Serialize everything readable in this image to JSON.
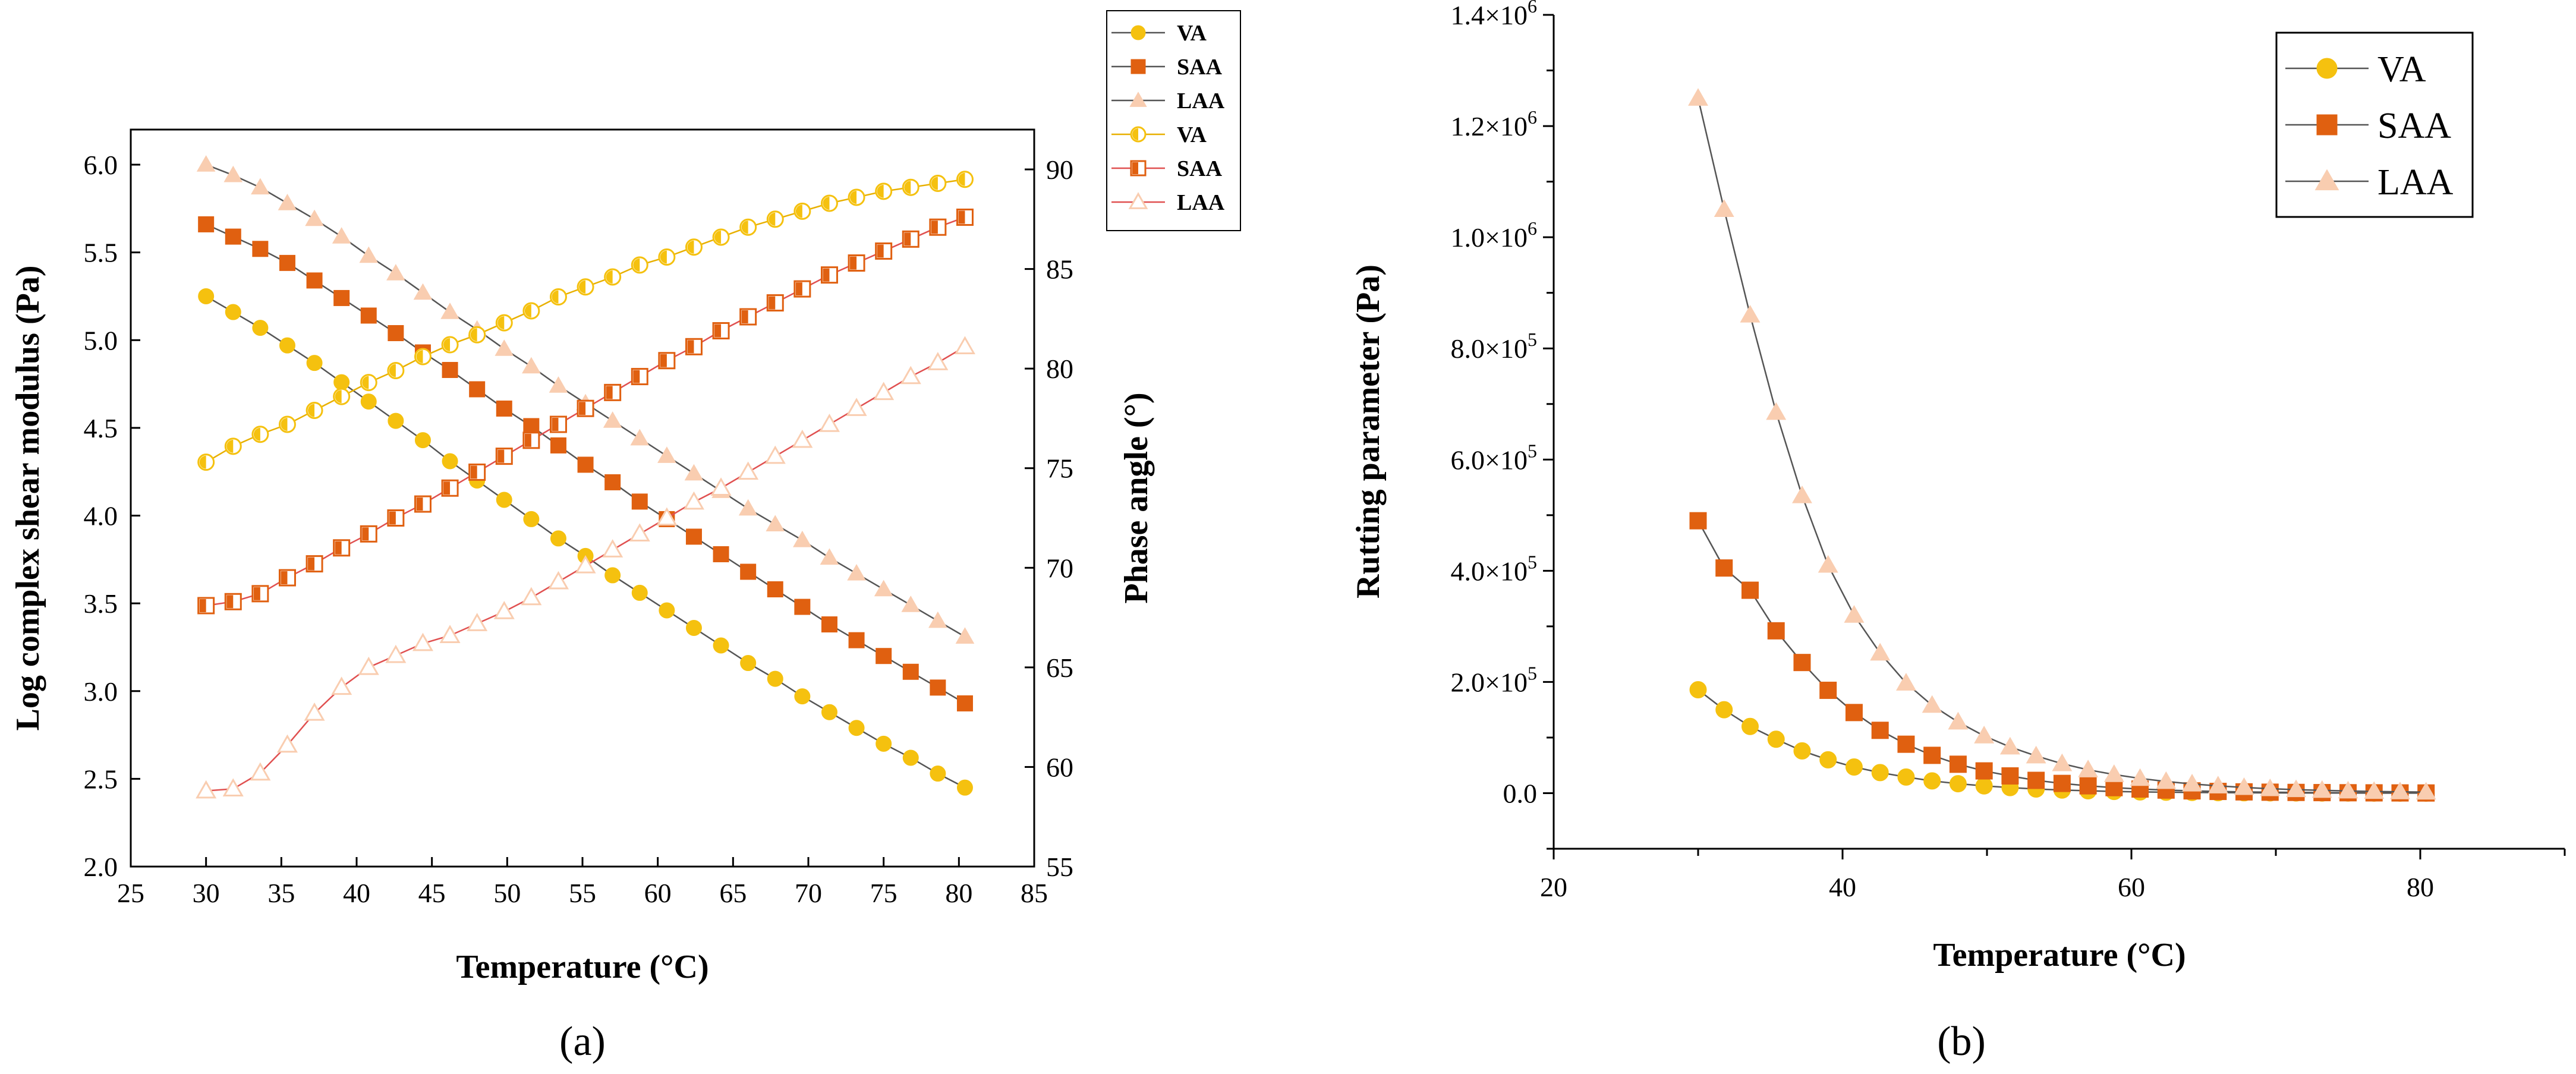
{
  "colors": {
    "va": "#F5C10F",
    "saa": "#E06010",
    "laa": "#F9CDB0",
    "line_dark": "#555555",
    "line_va_open": "#E8B000",
    "line_red": "#E05050"
  },
  "panels": {
    "a": "(a)",
    "b": "(b)"
  },
  "chart_data": [
    {
      "type": "line",
      "panel": "a",
      "title": "",
      "xlabel": "Temperature (°C)",
      "ylabel": "Log complex shear modulus (Pa)",
      "y2label": "Phase angle (°)",
      "xlim": [
        25,
        85
      ],
      "ylim": [
        2.0,
        6.2
      ],
      "y2lim": [
        55,
        92
      ],
      "xticks": [
        "25",
        "30",
        "35",
        "40",
        "45",
        "50",
        "55",
        "60",
        "65",
        "70",
        "75",
        "80",
        "85"
      ],
      "yticks": [
        "2.0",
        "2.5",
        "3.0",
        "3.5",
        "4.0",
        "4.5",
        "5.0",
        "5.5",
        "6.0"
      ],
      "y2ticks": [
        "55",
        "60",
        "65",
        "70",
        "75",
        "80",
        "85",
        "90"
      ],
      "x": [
        30,
        31.8,
        33.6,
        35.4,
        37.2,
        39,
        40.8,
        42.6,
        44.4,
        46.2,
        48,
        49.8,
        51.6,
        53.4,
        55.2,
        57,
        58.8,
        60.6,
        62.4,
        64.2,
        66,
        67.8,
        69.6,
        71.4,
        73.2,
        75,
        76.8,
        78.6,
        80.4
      ],
      "legend": [
        "VA",
        "SAA",
        "LAA",
        "VA",
        "SAA",
        "LAA"
      ],
      "series": [
        {
          "name": "VA",
          "axis": "left",
          "marker": "circle",
          "filled": true,
          "values": [
            5.25,
            5.16,
            5.07,
            4.97,
            4.87,
            4.76,
            4.65,
            4.54,
            4.43,
            4.31,
            4.2,
            4.09,
            3.98,
            3.87,
            3.77,
            3.66,
            3.56,
            3.46,
            3.36,
            3.26,
            3.16,
            3.07,
            2.97,
            2.88,
            2.79,
            2.7,
            2.62,
            2.53,
            2.45
          ]
        },
        {
          "name": "SAA",
          "axis": "left",
          "marker": "square",
          "filled": true,
          "values": [
            5.66,
            5.59,
            5.52,
            5.44,
            5.34,
            5.24,
            5.14,
            5.04,
            4.93,
            4.83,
            4.72,
            4.61,
            4.51,
            4.4,
            4.29,
            4.19,
            4.08,
            3.98,
            3.88,
            3.78,
            3.68,
            3.58,
            3.48,
            3.38,
            3.29,
            3.2,
            3.11,
            3.02,
            2.93
          ]
        },
        {
          "name": "LAA",
          "axis": "left",
          "marker": "triangle",
          "filled": true,
          "values": [
            6.0,
            5.94,
            5.87,
            5.78,
            5.69,
            5.59,
            5.48,
            5.38,
            5.27,
            5.16,
            5.06,
            4.95,
            4.85,
            4.74,
            4.64,
            4.54,
            4.44,
            4.34,
            4.24,
            4.14,
            4.04,
            3.95,
            3.86,
            3.76,
            3.67,
            3.58,
            3.49,
            3.4,
            3.31
          ]
        },
        {
          "name": "VA",
          "axis": "right",
          "marker": "circle",
          "filled": false,
          "values": [
            75.3,
            76.1,
            76.7,
            77.2,
            77.9,
            78.6,
            79.3,
            79.9,
            80.6,
            81.2,
            81.7,
            82.3,
            82.9,
            83.6,
            84.1,
            84.6,
            85.2,
            85.6,
            86.1,
            86.6,
            87.1,
            87.5,
            87.9,
            88.3,
            88.6,
            88.9,
            89.1,
            89.3,
            89.5
          ]
        },
        {
          "name": "SAA",
          "axis": "right",
          "marker": "square",
          "filled": false,
          "values": [
            68.1,
            68.3,
            68.7,
            69.5,
            70.2,
            71.0,
            71.7,
            72.5,
            73.2,
            74.0,
            74.8,
            75.6,
            76.4,
            77.2,
            78.0,
            78.8,
            79.6,
            80.4,
            81.1,
            81.9,
            82.6,
            83.3,
            84.0,
            84.7,
            85.3,
            85.9,
            86.5,
            87.1,
            87.6
          ]
        },
        {
          "name": "LAA",
          "axis": "right",
          "marker": "triangle",
          "filled": false,
          "values": [
            58.8,
            58.9,
            59.7,
            61.1,
            62.7,
            64.0,
            65.0,
            65.6,
            66.2,
            66.6,
            67.2,
            67.8,
            68.5,
            69.3,
            70.1,
            70.9,
            71.7,
            72.5,
            73.3,
            74.0,
            74.8,
            75.6,
            76.4,
            77.2,
            78.0,
            78.8,
            79.6,
            80.3,
            81.1
          ]
        }
      ]
    },
    {
      "type": "line",
      "panel": "b",
      "title": "",
      "xlabel": "Temperature (°C)",
      "ylabel": "Rutting parameter (Pa)",
      "xlim": [
        20,
        90
      ],
      "ylim": [
        -100000,
        1400000
      ],
      "xticks": [
        "20",
        "40",
        "60",
        "80"
      ],
      "yticks": [
        "0.0",
        "2.0×10^5",
        "4.0×10^5",
        "6.0×10^5",
        "8.0×10^5",
        "1.0×10^6",
        "1.2×10^6",
        "1.4×10^6"
      ],
      "x": [
        30,
        31.8,
        33.6,
        35.4,
        37.2,
        39,
        40.8,
        42.6,
        44.4,
        46.2,
        48,
        49.8,
        51.6,
        53.4,
        55.2,
        57,
        58.8,
        60.6,
        62.4,
        64.2,
        66,
        67.8,
        69.6,
        71.4,
        73.2,
        75,
        76.8,
        78.6,
        80.4
      ],
      "legend": [
        "VA",
        "SAA",
        "LAA"
      ],
      "series": [
        {
          "name": "VA",
          "marker": "circle",
          "values": [
            186000,
            150000,
            120000,
            97000,
            76000,
            60000,
            47000,
            37000,
            29000,
            22000,
            17000,
            13000,
            10000,
            7500,
            5600,
            4200,
            3100,
            2300,
            1700,
            1300,
            950,
            700,
            520,
            390,
            290,
            220,
            160,
            120,
            90
          ]
        },
        {
          "name": "SAA",
          "marker": "square",
          "values": [
            490000,
            405000,
            365000,
            292000,
            235000,
            185000,
            145000,
            113000,
            88000,
            68000,
            52000,
            40000,
            31000,
            23000,
            17500,
            13200,
            9900,
            7400,
            5500,
            4100,
            3100,
            2300,
            1700,
            1300,
            960,
            720,
            540,
            400,
            300
          ]
        },
        {
          "name": "LAA",
          "marker": "triangle",
          "values": [
            1250000,
            1050000,
            860000,
            685000,
            535000,
            410000,
            320000,
            252000,
            198000,
            158000,
            128000,
            103000,
            83000,
            67000,
            53000,
            42000,
            33500,
            26500,
            21000,
            16500,
            13000,
            10200,
            8000,
            6300,
            5000,
            3900,
            3100,
            2400,
            1900
          ]
        }
      ]
    }
  ]
}
